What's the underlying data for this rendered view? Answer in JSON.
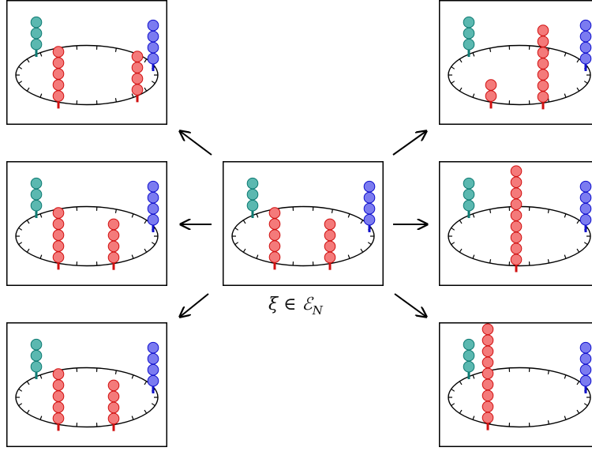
{
  "caption": "ξ ∈ ℰ_N",
  "caption_parts": {
    "main": "ξ ∈ ℰ",
    "sub": "N"
  },
  "colors": {
    "teal_fill": "#5bb8b0",
    "teal_stroke": "#0d7a72",
    "red_fill": "#f47a7a",
    "red_stroke": "#d01010",
    "blue_fill": "#7b7bf0",
    "blue_stroke": "#1010cc",
    "frame": "#000000",
    "arrow": "#000000"
  },
  "configurations": [
    {
      "id": "center",
      "teal": 3,
      "blue": 4,
      "red_a": 5,
      "red_b": 4,
      "ra_pos": "left",
      "rb_pos": "right"
    },
    {
      "id": "top-left",
      "teal": 3,
      "blue": 4,
      "red_a": 5,
      "red_b": 4,
      "ra_pos": "left",
      "rb_pos": "right2"
    },
    {
      "id": "mid-left",
      "teal": 3,
      "blue": 4,
      "red_a": 5,
      "red_b": 4,
      "ra_pos": "left",
      "rb_pos": "right"
    },
    {
      "id": "bottom-left",
      "teal": 3,
      "blue": 4,
      "red_a": 5,
      "red_b": 4,
      "ra_pos": "left",
      "rb_pos": "right"
    },
    {
      "id": "top-right",
      "teal": 3,
      "blue": 4,
      "red_a": 2,
      "red_b": 7,
      "ra_pos": "left",
      "rb_pos": "right3"
    },
    {
      "id": "mid-right",
      "teal": 3,
      "blue": 4,
      "red_a": 9,
      "red_b": 0,
      "ra_pos": "mid",
      "rb_pos": "right"
    },
    {
      "id": "bottom-right",
      "teal": 3,
      "blue": 4,
      "red_a": 9,
      "red_b": 0,
      "ra_pos": "left2",
      "rb_pos": "right"
    }
  ]
}
